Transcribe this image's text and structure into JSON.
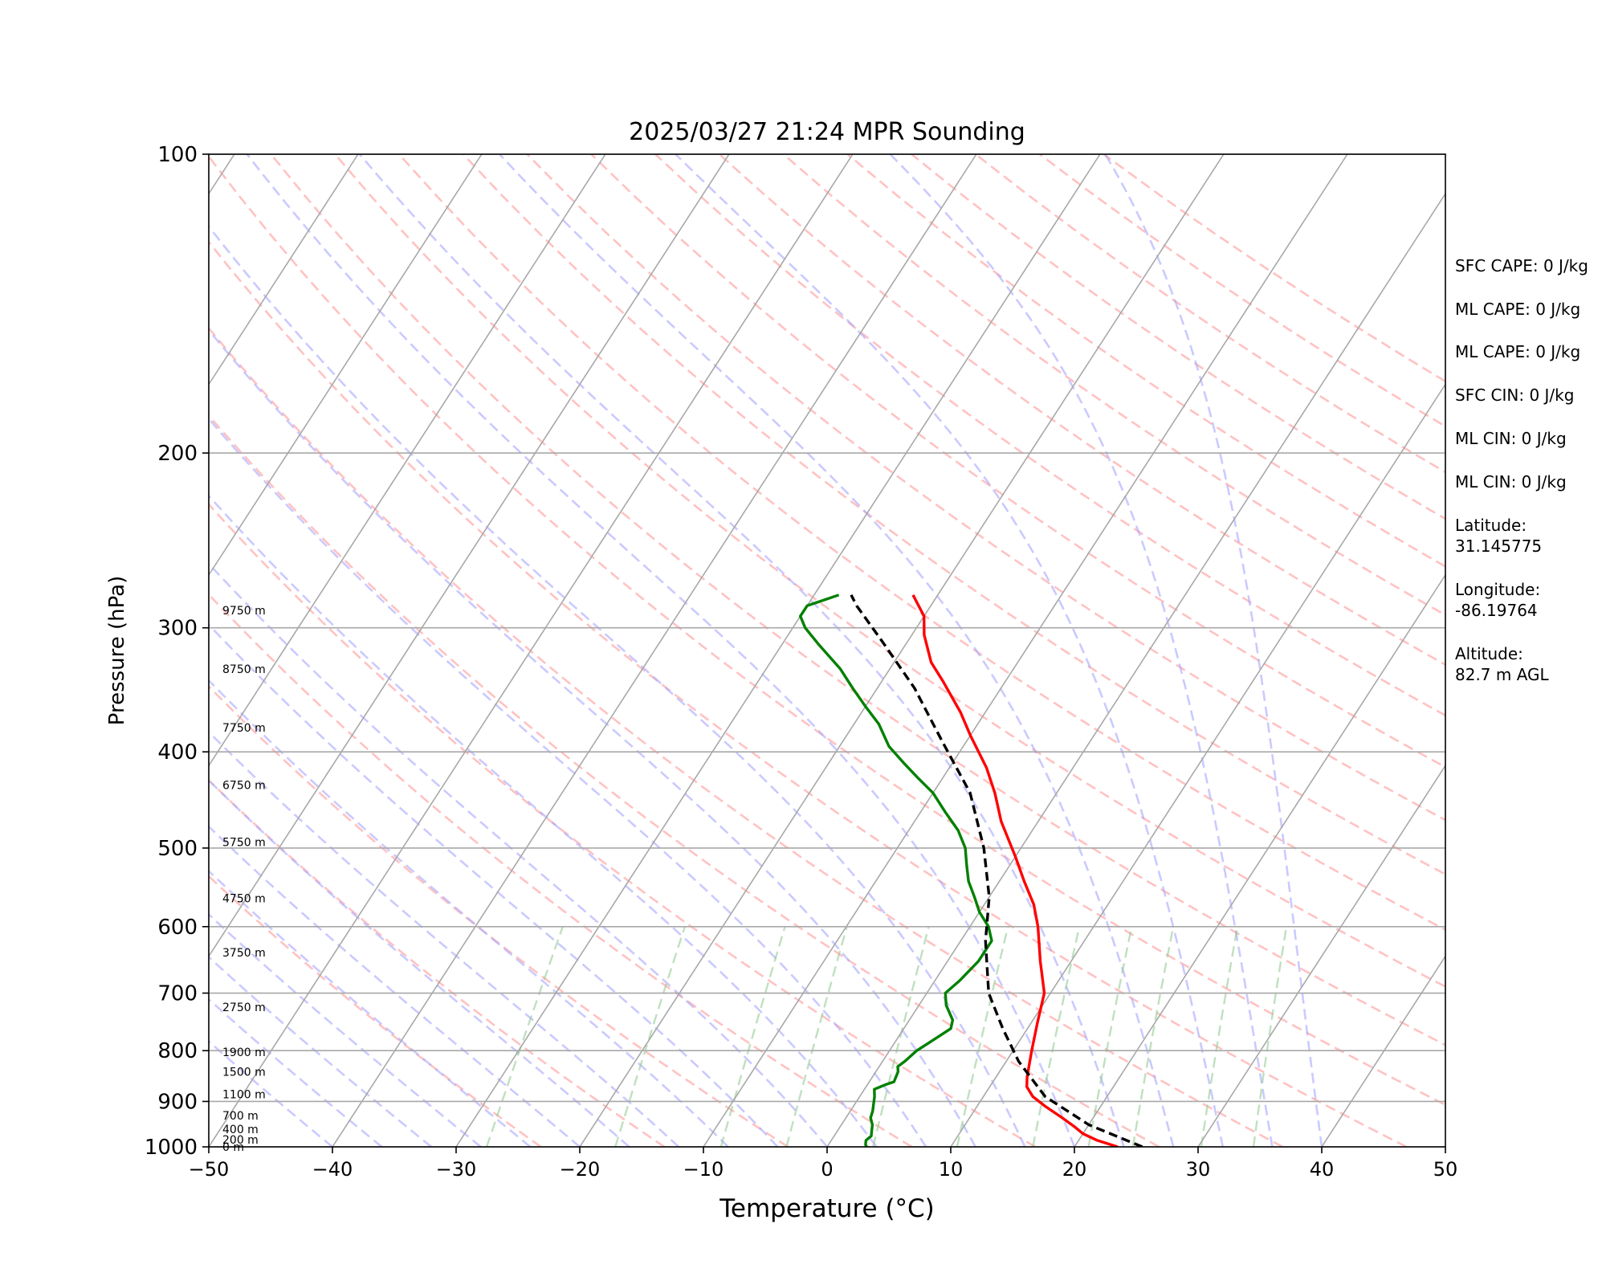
{
  "chart_data": {
    "type": "line",
    "title": "2025/03/27 21:24 MPR Sounding",
    "xlabel": "Temperature (°C)",
    "ylabel": "Pressure (hPa)",
    "xlim": [
      -50,
      50
    ],
    "ylim": [
      1000,
      100
    ],
    "y_scale": "log",
    "x_ticks": [
      -50,
      -40,
      -30,
      -20,
      -10,
      0,
      10,
      20,
      30,
      40,
      50
    ],
    "x_tick_labels": [
      "−50",
      "−40",
      "−30",
      "−20",
      "−10",
      "0",
      "10",
      "20",
      "30",
      "40",
      "50"
    ],
    "y_ticks": [
      100,
      200,
      300,
      400,
      500,
      600,
      700,
      800,
      900,
      1000
    ],
    "y_tick_labels": [
      "100",
      "200",
      "300",
      "400",
      "500",
      "600",
      "700",
      "800",
      "900",
      "1000"
    ],
    "grid": true,
    "height_labels": [
      {
        "p": 1000,
        "text": "0 m"
      },
      {
        "p": 983,
        "text": "200 m"
      },
      {
        "p": 960,
        "text": "400 m"
      },
      {
        "p": 930,
        "text": "700 m"
      },
      {
        "p": 885,
        "text": "1100 m"
      },
      {
        "p": 840,
        "text": "1500 m"
      },
      {
        "p": 803,
        "text": "1900 m"
      },
      {
        "p": 723,
        "text": "2750 m"
      },
      {
        "p": 637,
        "text": "3750 m"
      },
      {
        "p": 562,
        "text": "4750 m"
      },
      {
        "p": 493,
        "text": "5750 m"
      },
      {
        "p": 432,
        "text": "6750 m"
      },
      {
        "p": 378,
        "text": "7750 m"
      },
      {
        "p": 330,
        "text": "8750 m"
      },
      {
        "p": 288,
        "text": "9750 m"
      }
    ],
    "series": [
      {
        "color": "#ff0000",
        "style": "solid",
        "points": [
          [
            23.5,
            1000
          ],
          [
            21.5,
            985
          ],
          [
            20,
            970
          ],
          [
            19,
            955
          ],
          [
            17.5,
            935
          ],
          [
            15.5,
            910
          ],
          [
            14,
            890
          ],
          [
            13,
            870
          ],
          [
            12.5,
            850
          ],
          [
            11.5,
            800
          ],
          [
            10.5,
            750
          ],
          [
            9.5,
            700
          ],
          [
            7.5,
            650
          ],
          [
            5.5,
            600
          ],
          [
            4,
            570
          ],
          [
            2,
            540
          ],
          [
            0,
            510
          ],
          [
            -3,
            470
          ],
          [
            -5,
            440
          ],
          [
            -7,
            415
          ],
          [
            -10,
            385
          ],
          [
            -12,
            365
          ],
          [
            -15,
            340
          ],
          [
            -17,
            325
          ],
          [
            -19,
            305
          ],
          [
            -20,
            292
          ],
          [
            -22,
            278
          ]
        ]
      },
      {
        "color": "#008000",
        "style": "solid",
        "points": [
          [
            3.2,
            1000
          ],
          [
            3,
            995
          ],
          [
            2.8,
            985
          ],
          [
            3,
            975
          ],
          [
            2.8,
            965
          ],
          [
            2.5,
            950
          ],
          [
            2,
            935
          ],
          [
            1.8,
            920
          ],
          [
            1.5,
            905
          ],
          [
            1.2,
            890
          ],
          [
            0.8,
            875
          ],
          [
            1.5,
            865
          ],
          [
            2,
            860
          ],
          [
            1.8,
            840
          ],
          [
            1.5,
            830
          ],
          [
            1.8,
            820
          ],
          [
            2.2,
            800
          ],
          [
            2.8,
            785
          ],
          [
            3.8,
            760
          ],
          [
            3.5,
            745
          ],
          [
            2.2,
            720
          ],
          [
            1.5,
            700
          ],
          [
            2,
            680
          ],
          [
            2.5,
            650
          ],
          [
            2.5,
            620
          ],
          [
            1.5,
            600
          ],
          [
            0,
            580
          ],
          [
            -1.2,
            560
          ],
          [
            -2.5,
            540
          ],
          [
            -3.5,
            520
          ],
          [
            -4.5,
            500
          ],
          [
            -6,
            480
          ],
          [
            -8,
            460
          ],
          [
            -10,
            440
          ],
          [
            -12,
            425
          ],
          [
            -14,
            410
          ],
          [
            -16,
            395
          ],
          [
            -18,
            375
          ],
          [
            -20,
            360
          ],
          [
            -22,
            345
          ],
          [
            -24,
            330
          ],
          [
            -27,
            312
          ],
          [
            -29,
            300
          ],
          [
            -30,
            292
          ],
          [
            -30,
            285
          ],
          [
            -28,
            278
          ]
        ]
      },
      {
        "color": "#000000",
        "style": "dashed",
        "points": [
          [
            25.5,
            1000
          ],
          [
            20,
            950
          ],
          [
            15,
            890
          ],
          [
            11,
            820
          ],
          [
            8,
            760
          ],
          [
            5,
            700
          ],
          [
            2,
            620
          ],
          [
            0,
            560
          ],
          [
            -3,
            500
          ],
          [
            -7,
            440
          ],
          [
            -12,
            390
          ],
          [
            -17,
            345
          ],
          [
            -22,
            310
          ],
          [
            -26,
            285
          ],
          [
            -27,
            278
          ]
        ]
      }
    ],
    "info_labels": [
      "SFC CAPE: 0 J/kg",
      "ML CAPE: 0 J/kg",
      "ML CAPE: 0 J/kg",
      "SFC CIN: 0 J/kg",
      "ML CIN: 0 J/kg",
      "ML CIN: 0 J/kg",
      "Latitude:\n31.145775",
      "Longitude:\n-86.19764",
      "Altitude:\n82.7 m AGL"
    ]
  }
}
